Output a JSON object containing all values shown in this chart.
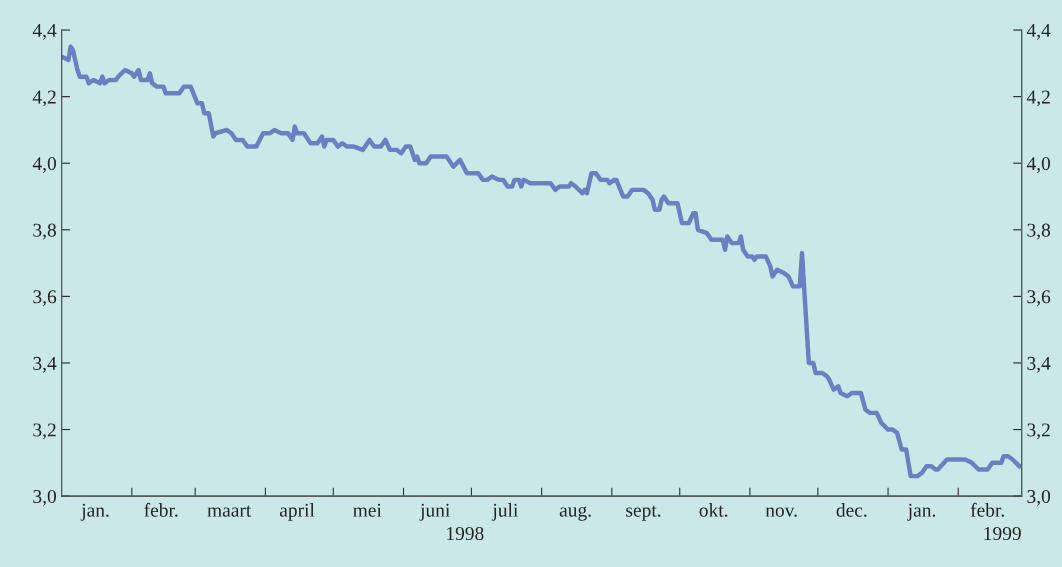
{
  "chart_data": {
    "type": "line",
    "x": [
      "1998-01-01",
      "1998-01-04",
      "1998-01-05",
      "1998-01-06",
      "1998-01-08",
      "1998-01-09",
      "1998-01-12",
      "1998-01-13",
      "1998-01-15",
      "1998-01-18",
      "1998-01-19",
      "1998-01-20",
      "1998-01-22",
      "1998-01-25",
      "1998-01-26",
      "1998-01-29",
      "1998-02-01",
      "1998-02-02",
      "1998-02-04",
      "1998-02-05",
      "1998-02-08",
      "1998-02-09",
      "1998-02-10",
      "1998-02-12",
      "1998-02-15",
      "1998-02-16",
      "1998-02-19",
      "1998-02-22",
      "1998-02-24",
      "1998-02-27",
      "1998-03-02",
      "1998-03-04",
      "1998-03-05",
      "1998-03-07",
      "1998-03-09",
      "1998-03-10",
      "1998-03-15",
      "1998-03-17",
      "1998-03-19",
      "1998-03-22",
      "1998-03-24",
      "1998-03-28",
      "1998-03-31",
      "1998-04-03",
      "1998-04-05",
      "1998-04-08",
      "1998-04-11",
      "1998-04-13",
      "1998-04-14",
      "1998-04-15",
      "1998-04-18",
      "1998-04-21",
      "1998-04-24",
      "1998-04-26",
      "1998-04-27",
      "1998-04-28",
      "1998-05-01",
      "1998-05-03",
      "1998-05-05",
      "1998-05-07",
      "1998-05-10",
      "1998-05-14",
      "1998-05-17",
      "1998-05-19",
      "1998-05-22",
      "1998-05-24",
      "1998-05-26",
      "1998-05-29",
      "1998-05-31",
      "1998-06-02",
      "1998-06-04",
      "1998-06-06",
      "1998-06-07",
      "1998-06-08",
      "1998-06-11",
      "1998-06-13",
      "1998-06-16",
      "1998-06-20",
      "1998-06-23",
      "1998-06-26",
      "1998-06-29",
      "1998-07-04",
      "1998-07-06",
      "1998-07-08",
      "1998-07-10",
      "1998-07-13",
      "1998-07-15",
      "1998-07-17",
      "1998-07-19",
      "1998-07-20",
      "1998-07-22",
      "1998-07-23",
      "1998-07-24",
      "1998-07-27",
      "1998-07-30",
      "1998-08-05",
      "1998-08-07",
      "1998-08-09",
      "1998-08-12",
      "1998-08-13",
      "1998-08-14",
      "1998-08-16",
      "1998-08-19",
      "1998-08-20",
      "1998-08-21",
      "1998-08-23",
      "1998-08-25",
      "1998-08-27",
      "1998-08-30",
      "1998-08-31",
      "1998-09-02",
      "1998-09-03",
      "1998-09-06",
      "1998-09-08",
      "1998-09-10",
      "1998-09-15",
      "1998-09-17",
      "1998-09-19",
      "1998-09-20",
      "1998-09-22",
      "1998-09-23",
      "1998-09-24",
      "1998-09-26",
      "1998-09-30",
      "1998-10-02",
      "1998-10-05",
      "1998-10-07",
      "1998-10-08",
      "1998-10-09",
      "1998-10-13",
      "1998-10-15",
      "1998-10-20",
      "1998-10-21",
      "1998-10-22",
      "1998-10-24",
      "1998-10-27",
      "1998-10-28",
      "1998-10-29",
      "1998-10-31",
      "1998-11-02",
      "1998-11-03",
      "1998-11-04",
      "1998-11-08",
      "1998-11-10",
      "1998-11-11",
      "1998-11-13",
      "1998-11-16",
      "1998-11-18",
      "1998-11-20",
      "1998-11-23",
      "1998-11-24",
      "1998-11-25",
      "1998-11-27",
      "1998-11-29",
      "1998-11-30",
      "1998-12-03",
      "1998-12-05",
      "1998-12-06",
      "1998-12-08",
      "1998-12-10",
      "1998-12-11",
      "1998-12-14",
      "1998-12-16",
      "1998-12-20",
      "1998-12-22",
      "1998-12-24",
      "1998-12-27",
      "1998-12-29",
      "1999-01-01",
      "1999-01-03",
      "1999-01-05",
      "1999-01-07",
      "1999-01-09",
      "1999-01-11",
      "1999-01-14",
      "1999-01-16",
      "1999-01-18",
      "1999-01-20",
      "1999-01-22",
      "1999-01-23",
      "1999-01-27",
      "1999-02-02",
      "1999-02-04",
      "1999-02-07",
      "1999-02-10",
      "1999-02-14",
      "1999-02-16",
      "1999-02-20",
      "1999-02-21",
      "1999-02-23",
      "1999-02-25",
      "1999-02-28"
    ],
    "series": [
      {
        "color": "#6b80c4",
        "values": [
          4.32,
          4.31,
          4.35,
          4.34,
          4.28,
          4.26,
          4.26,
          4.24,
          4.25,
          4.24,
          4.26,
          4.24,
          4.25,
          4.25,
          4.26,
          4.28,
          4.27,
          4.26,
          4.28,
          4.25,
          4.25,
          4.27,
          4.24,
          4.23,
          4.23,
          4.21,
          4.21,
          4.21,
          4.23,
          4.23,
          4.18,
          4.18,
          4.15,
          4.15,
          4.08,
          4.09,
          4.1,
          4.09,
          4.07,
          4.07,
          4.05,
          4.05,
          4.09,
          4.09,
          4.1,
          4.09,
          4.09,
          4.07,
          4.11,
          4.09,
          4.09,
          4.06,
          4.06,
          4.08,
          4.05,
          4.07,
          4.07,
          4.05,
          4.06,
          4.05,
          4.05,
          4.04,
          4.07,
          4.05,
          4.05,
          4.07,
          4.04,
          4.04,
          4.03,
          4.05,
          4.05,
          4.01,
          4.02,
          4.0,
          4.0,
          4.02,
          4.02,
          4.02,
          3.99,
          4.01,
          3.97,
          3.97,
          3.95,
          3.95,
          3.96,
          3.95,
          3.95,
          3.93,
          3.93,
          3.95,
          3.95,
          3.93,
          3.95,
          3.94,
          3.94,
          3.94,
          3.92,
          3.93,
          3.93,
          3.93,
          3.94,
          3.93,
          3.91,
          3.92,
          3.91,
          3.97,
          3.97,
          3.95,
          3.95,
          3.94,
          3.95,
          3.95,
          3.9,
          3.9,
          3.92,
          3.92,
          3.91,
          3.89,
          3.86,
          3.86,
          3.89,
          3.9,
          3.88,
          3.88,
          3.82,
          3.82,
          3.85,
          3.85,
          3.8,
          3.79,
          3.77,
          3.77,
          3.74,
          3.78,
          3.76,
          3.76,
          3.78,
          3.74,
          3.72,
          3.72,
          3.71,
          3.72,
          3.72,
          3.69,
          3.66,
          3.68,
          3.67,
          3.66,
          3.63,
          3.63,
          3.73,
          3.62,
          3.4,
          3.4,
          3.37,
          3.37,
          3.36,
          3.35,
          3.32,
          3.33,
          3.31,
          3.3,
          3.31,
          3.31,
          3.26,
          3.25,
          3.25,
          3.22,
          3.2,
          3.2,
          3.19,
          3.14,
          3.14,
          3.06,
          3.06,
          3.07,
          3.09,
          3.09,
          3.08,
          3.08,
          3.11,
          3.11,
          3.11,
          3.1,
          3.08,
          3.08,
          3.1,
          3.1,
          3.12,
          3.12,
          3.11,
          3.09
        ]
      }
    ],
    "xlim": [
      "1998-01-01",
      "1999-03-01"
    ],
    "xticks": [
      {
        "value": "1998-02-01",
        "label": null
      },
      {
        "value": "1998-03-01",
        "label": null
      },
      {
        "value": "1998-04-01",
        "label": null
      },
      {
        "value": "1998-05-01",
        "label": null
      },
      {
        "value": "1998-06-01",
        "label": null
      },
      {
        "value": "1998-07-01",
        "label": null
      },
      {
        "value": "1998-08-01",
        "label": null
      },
      {
        "value": "1998-09-01",
        "label": null
      },
      {
        "value": "1998-10-01",
        "label": null
      },
      {
        "value": "1998-11-01",
        "label": null
      },
      {
        "value": "1998-12-01",
        "label": null
      },
      {
        "value": "1999-01-01",
        "label": null
      },
      {
        "value": "1999-02-01",
        "label": null
      },
      {
        "value": "1998-01-16",
        "label": "jan."
      },
      {
        "value": "1998-02-14",
        "label": "febr."
      },
      {
        "value": "1998-03-16",
        "label": "maart"
      },
      {
        "value": "1998-04-15",
        "label": "april"
      },
      {
        "value": "1998-05-16",
        "label": "mei"
      },
      {
        "value": "1998-06-15",
        "label": "juni"
      },
      {
        "value": "1998-07-16",
        "label": "juli"
      },
      {
        "value": "1998-08-16",
        "label": "aug."
      },
      {
        "value": "1998-09-15",
        "label": "sept."
      },
      {
        "value": "1998-10-16",
        "label": "okt."
      },
      {
        "value": "1998-11-15",
        "label": "nov."
      },
      {
        "value": "1998-12-16",
        "label": "dec."
      },
      {
        "value": "1999-01-16",
        "label": "jan."
      },
      {
        "value": "1999-02-14",
        "label": "febr."
      }
    ],
    "ylim": [
      3.0,
      4.4
    ],
    "yticks": [
      {
        "value": 3.0,
        "label": "3,0"
      },
      {
        "value": 3.2,
        "label": "3,2"
      },
      {
        "value": 3.4,
        "label": "3,4"
      },
      {
        "value": 3.6,
        "label": "3,6"
      },
      {
        "value": 3.8,
        "label": "3,8"
      },
      {
        "value": 4.0,
        "label": "4,0"
      },
      {
        "value": 4.2,
        "label": "4,2"
      },
      {
        "value": 4.4,
        "label": "4,4"
      }
    ],
    "y2lim": [
      3.0,
      4.4
    ],
    "y2ticks": [
      {
        "value": 3.0,
        "label": "3,0"
      },
      {
        "value": 3.2,
        "label": "3,2"
      },
      {
        "value": 3.4,
        "label": "3,4"
      },
      {
        "value": 3.6,
        "label": "3,6"
      },
      {
        "value": 3.8,
        "label": "3,8"
      },
      {
        "value": 4.0,
        "label": "4,0"
      },
      {
        "value": 4.2,
        "label": "4,2"
      },
      {
        "value": 4.4,
        "label": "4,4"
      }
    ],
    "annotations": [
      "1998",
      "1999"
    ],
    "grid": false,
    "legend": false,
    "marker": "none",
    "line_style": "solid"
  }
}
